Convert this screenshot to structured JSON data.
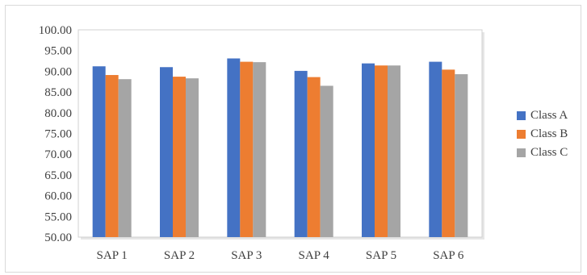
{
  "chart_data": {
    "type": "bar",
    "categories": [
      "SAP 1",
      "SAP 2",
      "SAP 3",
      "SAP 4",
      "SAP 5",
      "SAP 6"
    ],
    "series": [
      {
        "name": "Class A",
        "color": "#4472c4",
        "values": [
          91.2,
          91.0,
          93.1,
          90.1,
          91.9,
          92.3
        ]
      },
      {
        "name": "Class B",
        "color": "#ed7d31",
        "values": [
          89.1,
          88.7,
          92.3,
          88.6,
          91.4,
          90.4
        ]
      },
      {
        "name": "Class C",
        "color": "#a5a5a5",
        "values": [
          88.1,
          88.3,
          92.2,
          86.5,
          91.4,
          89.3
        ]
      }
    ],
    "yticks": [
      "100.00",
      "95.00",
      "90.00",
      "85.00",
      "80.00",
      "75.00",
      "70.00",
      "65.00",
      "60.00",
      "55.00",
      "50.00"
    ],
    "ylim": [
      50,
      100
    ],
    "title": "",
    "xlabel": "",
    "ylabel": "",
    "grid": false,
    "legend_position": "right"
  }
}
